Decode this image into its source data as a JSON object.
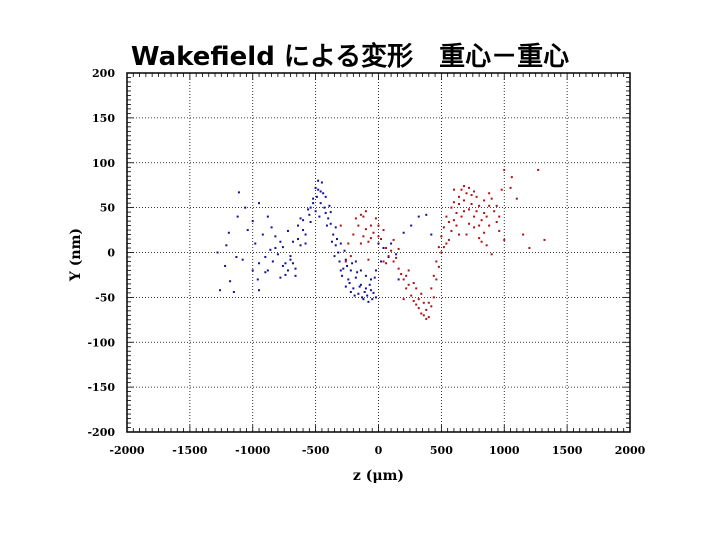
{
  "chart_data": {
    "type": "scatter",
    "title": "Wakefield による変形　重心－重心",
    "xlabel": "z (μm)",
    "ylabel": "Y (nm)",
    "xlim": [
      -2000,
      2000
    ],
    "ylim": [
      -200,
      200
    ],
    "xticks": [
      -2000,
      -1500,
      -1000,
      -500,
      0,
      500,
      1000,
      1500,
      2000
    ],
    "yticks": [
      -200,
      -150,
      -100,
      -50,
      0,
      50,
      100,
      150,
      200
    ],
    "grid": true,
    "series": [
      {
        "name": "blue",
        "color": "#10109a",
        "points": [
          [
            -1280,
            0
          ],
          [
            -1260,
            -42
          ],
          [
            -1220,
            -15
          ],
          [
            -1210,
            8
          ],
          [
            -1180,
            -32
          ],
          [
            -1150,
            -44
          ],
          [
            -1120,
            40
          ],
          [
            -1110,
            67
          ],
          [
            -1060,
            50
          ],
          [
            -1000,
            -20
          ],
          [
            -980,
            10
          ],
          [
            -950,
            -12
          ],
          [
            -920,
            20
          ],
          [
            -900,
            -5
          ],
          [
            -880,
            -20
          ],
          [
            -860,
            3
          ],
          [
            -840,
            -10
          ],
          [
            -820,
            18
          ],
          [
            -800,
            -2
          ],
          [
            -780,
            -28
          ],
          [
            -760,
            6
          ],
          [
            -740,
            -12
          ],
          [
            -720,
            24
          ],
          [
            -700,
            -4
          ],
          [
            -680,
            12
          ],
          [
            -660,
            -18
          ],
          [
            -640,
            30
          ],
          [
            -620,
            8
          ],
          [
            -600,
            36
          ],
          [
            -580,
            20
          ],
          [
            -560,
            48
          ],
          [
            -540,
            34
          ],
          [
            -520,
            60
          ],
          [
            -500,
            46
          ],
          [
            -480,
            70
          ],
          [
            -460,
            55
          ],
          [
            -450,
            78
          ],
          [
            -430,
            50
          ],
          [
            -420,
            62
          ],
          [
            -400,
            38
          ],
          [
            -380,
            45
          ],
          [
            -360,
            20
          ],
          [
            -340,
            28
          ],
          [
            -320,
            0
          ],
          [
            -300,
            10
          ],
          [
            -280,
            -18
          ],
          [
            -260,
            -8
          ],
          [
            -240,
            -30
          ],
          [
            -220,
            -20
          ],
          [
            -200,
            -40
          ],
          [
            -180,
            -28
          ],
          [
            -160,
            -46
          ],
          [
            -140,
            -36
          ],
          [
            -120,
            -52
          ],
          [
            -100,
            -40
          ],
          [
            -80,
            -55
          ],
          [
            -60,
            -30
          ],
          [
            -40,
            -45
          ],
          [
            -20,
            -20
          ],
          [
            0,
            10
          ],
          [
            -520,
            55
          ],
          [
            -490,
            62
          ],
          [
            -470,
            40
          ],
          [
            -440,
            66
          ],
          [
            -410,
            30
          ],
          [
            -390,
            52
          ],
          [
            -370,
            12
          ],
          [
            -350,
            -4
          ],
          [
            -330,
            15
          ],
          [
            -310,
            -10
          ],
          [
            -290,
            -26
          ],
          [
            -270,
            2
          ],
          [
            -250,
            -15
          ],
          [
            -230,
            -34
          ],
          [
            -210,
            -12
          ],
          [
            -190,
            -48
          ],
          [
            -170,
            -22
          ],
          [
            -150,
            -38
          ],
          [
            -130,
            -50
          ],
          [
            -110,
            -44
          ],
          [
            -90,
            -48
          ],
          [
            -70,
            -36
          ],
          [
            -50,
            -52
          ],
          [
            -30,
            -28
          ],
          [
            -600,
            25
          ],
          [
            -640,
            15
          ],
          [
            -700,
            -8
          ],
          [
            -760,
            -15
          ],
          [
            -820,
            5
          ],
          [
            -900,
            -22
          ],
          [
            -960,
            -30
          ],
          [
            -1040,
            25
          ],
          [
            -1080,
            -8
          ],
          [
            -1000,
            35
          ],
          [
            -880,
            40
          ],
          [
            -740,
            -25
          ],
          [
            -660,
            -26
          ],
          [
            -580,
            10
          ],
          [
            -540,
            50
          ],
          [
            -500,
            72
          ],
          [
            -460,
            68
          ],
          [
            -420,
            44
          ],
          [
            -380,
            32
          ],
          [
            -340,
            8
          ],
          [
            -300,
            -20
          ],
          [
            -260,
            -38
          ],
          [
            -220,
            -44
          ],
          [
            -180,
            -10
          ],
          [
            -140,
            -20
          ],
          [
            -100,
            -26
          ],
          [
            -60,
            -42
          ],
          [
            -20,
            -50
          ],
          [
            20,
            -10
          ],
          [
            40,
            5
          ],
          [
            80,
            -5
          ],
          [
            100,
            10
          ],
          [
            140,
            -2
          ],
          [
            160,
            -30
          ],
          [
            200,
            22
          ],
          [
            260,
            30
          ],
          [
            320,
            40
          ],
          [
            380,
            42
          ],
          [
            420,
            20
          ],
          [
            -480,
            80
          ],
          [
            -550,
            42
          ],
          [
            -620,
            38
          ],
          [
            -680,
            -12
          ],
          [
            -720,
            -20
          ],
          [
            -780,
            12
          ],
          [
            -850,
            28
          ],
          [
            -950,
            -42
          ],
          [
            -1130,
            -5
          ],
          [
            -1190,
            22
          ],
          [
            -950,
            55
          ]
        ]
      },
      {
        "name": "red",
        "color": "#b01010",
        "points": [
          [
            -200,
            20
          ],
          [
            -180,
            38
          ],
          [
            -160,
            30
          ],
          [
            -140,
            42
          ],
          [
            -120,
            18
          ],
          [
            -100,
            26
          ],
          [
            -80,
            12
          ],
          [
            -60,
            30
          ],
          [
            -40,
            22
          ],
          [
            -20,
            38
          ],
          [
            0,
            30
          ],
          [
            20,
            15
          ],
          [
            40,
            25
          ],
          [
            60,
            5
          ],
          [
            80,
            -4
          ],
          [
            100,
            2
          ],
          [
            120,
            -10
          ],
          [
            140,
            -6
          ],
          [
            160,
            -18
          ],
          [
            180,
            -24
          ],
          [
            200,
            -30
          ],
          [
            220,
            -40
          ],
          [
            240,
            -36
          ],
          [
            260,
            -48
          ],
          [
            280,
            -54
          ],
          [
            300,
            -58
          ],
          [
            320,
            -62
          ],
          [
            340,
            -68
          ],
          [
            360,
            -70
          ],
          [
            380,
            -64
          ],
          [
            400,
            -56
          ],
          [
            420,
            -40
          ],
          [
            440,
            -26
          ],
          [
            460,
            -10
          ],
          [
            480,
            6
          ],
          [
            500,
            18
          ],
          [
            520,
            28
          ],
          [
            540,
            40
          ],
          [
            560,
            34
          ],
          [
            580,
            50
          ],
          [
            600,
            56
          ],
          [
            620,
            44
          ],
          [
            640,
            62
          ],
          [
            660,
            70
          ],
          [
            680,
            58
          ],
          [
            700,
            66
          ],
          [
            720,
            48
          ],
          [
            740,
            54
          ],
          [
            760,
            40
          ],
          [
            780,
            46
          ],
          [
            800,
            30
          ],
          [
            820,
            36
          ],
          [
            840,
            22
          ],
          [
            860,
            40
          ],
          [
            880,
            52
          ],
          [
            900,
            60
          ],
          [
            920,
            46
          ],
          [
            940,
            34
          ],
          [
            960,
            24
          ],
          [
            980,
            70
          ],
          [
            1000,
            92
          ],
          [
            1050,
            72
          ],
          [
            1100,
            60
          ],
          [
            1150,
            20
          ],
          [
            1270,
            92
          ],
          [
            1320,
            14
          ],
          [
            -240,
            10
          ],
          [
            -260,
            -10
          ],
          [
            -300,
            30
          ],
          [
            -220,
            -4
          ],
          [
            -120,
            40
          ],
          [
            -80,
            -8
          ],
          [
            40,
            -10
          ],
          [
            120,
            14
          ],
          [
            200,
            -52
          ],
          [
            240,
            -20
          ],
          [
            300,
            -40
          ],
          [
            340,
            -46
          ],
          [
            380,
            -74
          ],
          [
            420,
            -60
          ],
          [
            460,
            -30
          ],
          [
            500,
            0
          ],
          [
            540,
            10
          ],
          [
            580,
            24
          ],
          [
            620,
            30
          ],
          [
            660,
            40
          ],
          [
            700,
            20
          ],
          [
            740,
            64
          ],
          [
            780,
            62
          ],
          [
            820,
            12
          ],
          [
            860,
            8
          ],
          [
            900,
            -2
          ],
          [
            1000,
            14
          ],
          [
            1060,
            84
          ],
          [
            1200,
            5
          ],
          [
            600,
            70
          ],
          [
            640,
            54
          ],
          [
            680,
            74
          ],
          [
            720,
            72
          ],
          [
            760,
            28
          ],
          [
            800,
            52
          ],
          [
            840,
            58
          ],
          [
            880,
            30
          ],
          [
            940,
            52
          ],
          [
            -140,
            10
          ],
          [
            -100,
            46
          ],
          [
            -60,
            16
          ],
          [
            0,
            18
          ],
          [
            60,
            -12
          ],
          [
            160,
            4
          ],
          [
            220,
            -26
          ],
          [
            280,
            -34
          ],
          [
            320,
            -52
          ],
          [
            360,
            -56
          ],
          [
            400,
            -72
          ],
          [
            440,
            -50
          ],
          [
            480,
            -16
          ],
          [
            520,
            6
          ],
          [
            560,
            14
          ],
          [
            600,
            36
          ],
          [
            640,
            20
          ],
          [
            680,
            46
          ],
          [
            720,
            32
          ],
          [
            760,
            68
          ],
          [
            800,
            16
          ],
          [
            840,
            44
          ],
          [
            880,
            66
          ],
          [
            960,
            40
          ]
        ]
      }
    ]
  }
}
